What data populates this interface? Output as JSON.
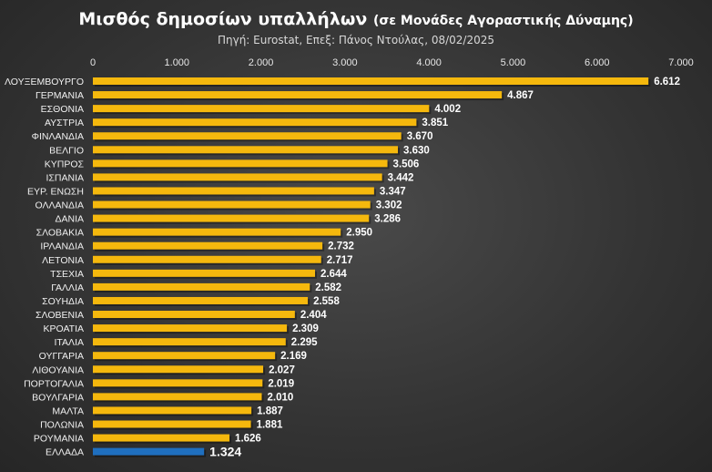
{
  "chart_data": {
    "type": "bar",
    "orientation": "horizontal",
    "title": "Μισθός δημοσίων υπαλλήλων",
    "title_suffix": "(σε Μονάδες Αγοραστικής Δύναμης)",
    "subtitle": "Πηγή: Eurostat, Επεξ: Πάνος Ντούλας, 08/02/2025",
    "xlim": [
      0,
      7000
    ],
    "tick_values": [
      0,
      1000,
      2000,
      3000,
      4000,
      5000,
      6000,
      7000
    ],
    "tick_labels": [
      "0",
      "1.000",
      "2.000",
      "3.000",
      "4.000",
      "5.000",
      "6.000",
      "7.000"
    ],
    "categories": [
      "ΛΟΥΞΕΜΒΟΥΡΓΟ",
      "ΓΕΡΜΑΝΙΑ",
      "ΕΣΘΟΝΙΑ",
      "ΑΥΣΤΡΙΑ",
      "ΦΙΝΛΑΝΔΙΑ",
      "ΒΕΛΓΙΟ",
      "ΚΥΠΡΟΣ",
      "ΙΣΠΑΝΙΑ",
      "ΕΥΡ. ΕΝΩΣΗ",
      "ΟΛΛΑΝΔΙΑ",
      "ΔΑΝΙΑ",
      "ΣΛΟΒΑΚΙΑ",
      "ΙΡΛΑΝΔΙΑ",
      "ΛΕΤΟΝΙΑ",
      "ΤΣΕΧΙΑ",
      "ΓΑΛΛΙΑ",
      "ΣΟΥΗΔΙΑ",
      "ΣΛΟΒΕΝΙΑ",
      "ΚΡΟΑΤΙΑ",
      "ΙΤΑΛΙΑ",
      "ΟΥΓΓΑΡΙΑ",
      "ΛΙΘΟΥΑΝΙΑ",
      "ΠΟΡΤΟΓΑΛΙΑ",
      "ΒΟΥΛΓΑΡΙΑ",
      "ΜΑΛΤΑ",
      "ΠΟΛΩΝΙΑ",
      "ΡΟΥΜΑΝΙΑ",
      "ΕΛΛΑΔΑ"
    ],
    "values": [
      6612,
      4867,
      4002,
      3851,
      3670,
      3630,
      3506,
      3442,
      3347,
      3302,
      3286,
      2950,
      2732,
      2717,
      2644,
      2582,
      2558,
      2404,
      2309,
      2295,
      2169,
      2027,
      2019,
      2010,
      1887,
      1881,
      1626,
      1324
    ],
    "value_labels": [
      "6.612",
      "4.867",
      "4.002",
      "3.851",
      "3.670",
      "3.630",
      "3.506",
      "3.442",
      "3.347",
      "3.302",
      "3.286",
      "2.950",
      "2.732",
      "2.717",
      "2.644",
      "2.582",
      "2.558",
      "2.404",
      "2.309",
      "2.295",
      "2.169",
      "2.027",
      "2.019",
      "2.010",
      "1.887",
      "1.881",
      "1.626",
      "1.324"
    ],
    "highlight": "ΕΛΛΑΔΑ",
    "colors": {
      "bar": "#f5b80d",
      "highlight": "#1f6fbf",
      "background": "#3a3a3a"
    }
  }
}
